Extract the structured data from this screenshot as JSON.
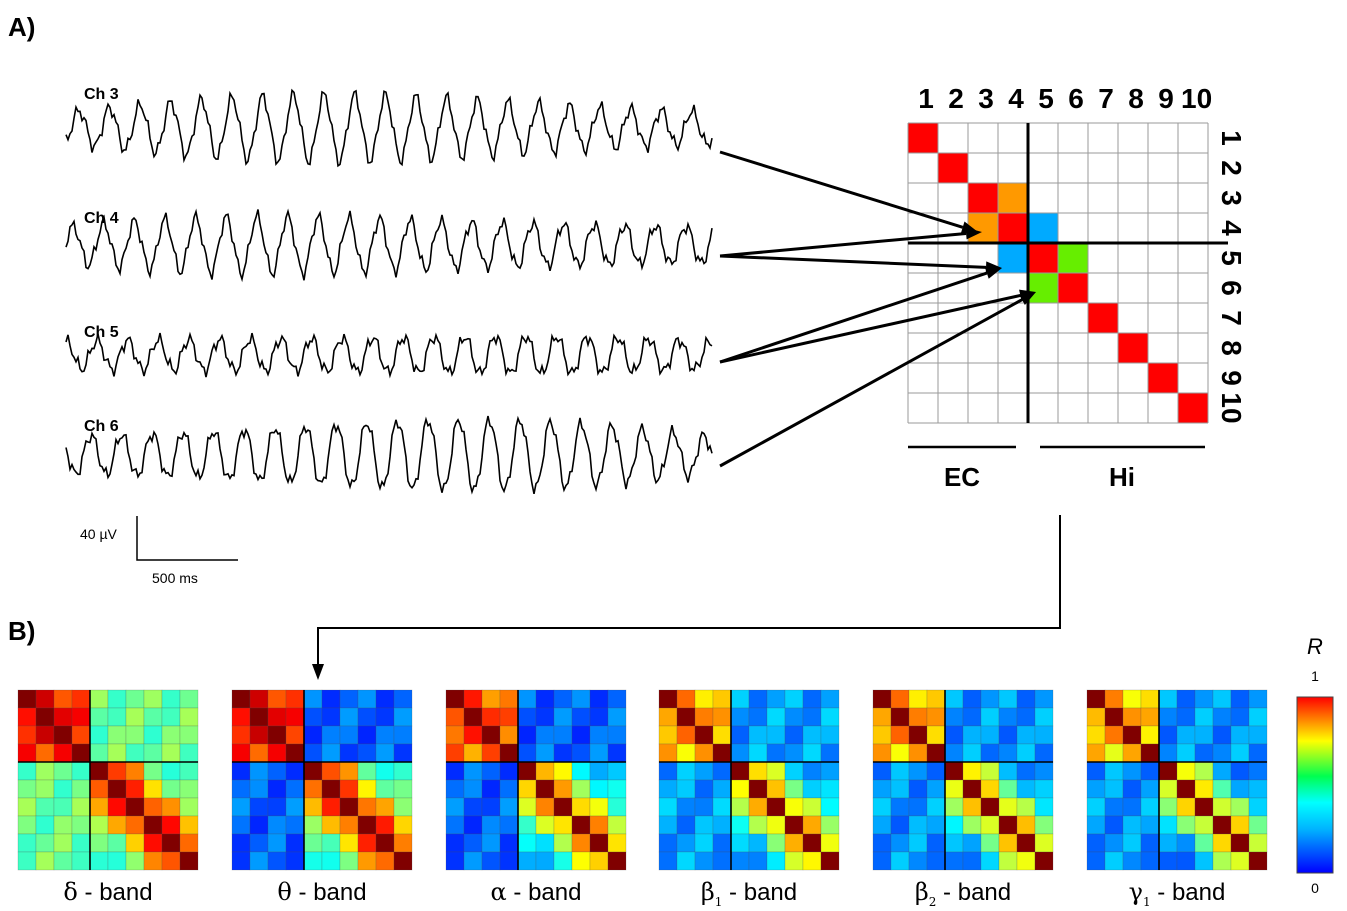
{
  "panel_a": {
    "label": "A)",
    "channels": [
      "Ch 3",
      "Ch 4",
      "Ch 5",
      "Ch 6"
    ],
    "scale_amplitude": "40 µV",
    "scale_time": "500 ms",
    "matrix_numbers": [
      "1",
      "2",
      "3",
      "4",
      "5",
      "6",
      "7",
      "8",
      "9",
      "10"
    ],
    "regions": [
      "EC",
      "Hi"
    ],
    "highlighted_cells": [
      {
        "row": 1,
        "col": 1,
        "color": "#ff0000"
      },
      {
        "row": 2,
        "col": 2,
        "color": "#ff0000"
      },
      {
        "row": 3,
        "col": 3,
        "color": "#ff0000"
      },
      {
        "row": 3,
        "col": 4,
        "color": "#ff9900"
      },
      {
        "row": 4,
        "col": 3,
        "color": "#ff9900"
      },
      {
        "row": 4,
        "col": 4,
        "color": "#ff0000"
      },
      {
        "row": 4,
        "col": 5,
        "color": "#00aaff"
      },
      {
        "row": 5,
        "col": 4,
        "color": "#00aaff"
      },
      {
        "row": 5,
        "col": 5,
        "color": "#ff0000"
      },
      {
        "row": 5,
        "col": 6,
        "color": "#66ee00"
      },
      {
        "row": 6,
        "col": 5,
        "color": "#66ee00"
      },
      {
        "row": 6,
        "col": 6,
        "color": "#ff0000"
      },
      {
        "row": 7,
        "col": 7,
        "color": "#ff0000"
      },
      {
        "row": 8,
        "col": 8,
        "color": "#ff0000"
      },
      {
        "row": 9,
        "col": 9,
        "color": "#ff0000"
      },
      {
        "row": 10,
        "col": 10,
        "color": "#ff0000"
      }
    ]
  },
  "panel_b": {
    "label": "B)",
    "bands": [
      {
        "symbol": "δ",
        "sub": "",
        "word": " - band",
        "ec": 0.85,
        "hi": 0.62,
        "cross": 0.48
      },
      {
        "symbol": "θ",
        "sub": "",
        "word": " - band",
        "ec": 0.85,
        "hi": 0.6,
        "cross": 0.22
      },
      {
        "symbol": "α",
        "sub": "",
        "word": " - band",
        "ec": 0.78,
        "hi": 0.5,
        "cross": 0.22
      },
      {
        "symbol": "β",
        "sub": "1",
        "word": " - band",
        "ec": 0.7,
        "hi": 0.46,
        "cross": 0.28
      },
      {
        "symbol": "β",
        "sub": "2",
        "word": " - band",
        "ec": 0.7,
        "hi": 0.44,
        "cross": 0.27
      },
      {
        "symbol": "γ",
        "sub": "1",
        "word": " - band",
        "ec": 0.68,
        "hi": 0.42,
        "cross": 0.27
      }
    ],
    "colorbar": {
      "title": "R",
      "max": "1",
      "min": "0"
    }
  }
}
